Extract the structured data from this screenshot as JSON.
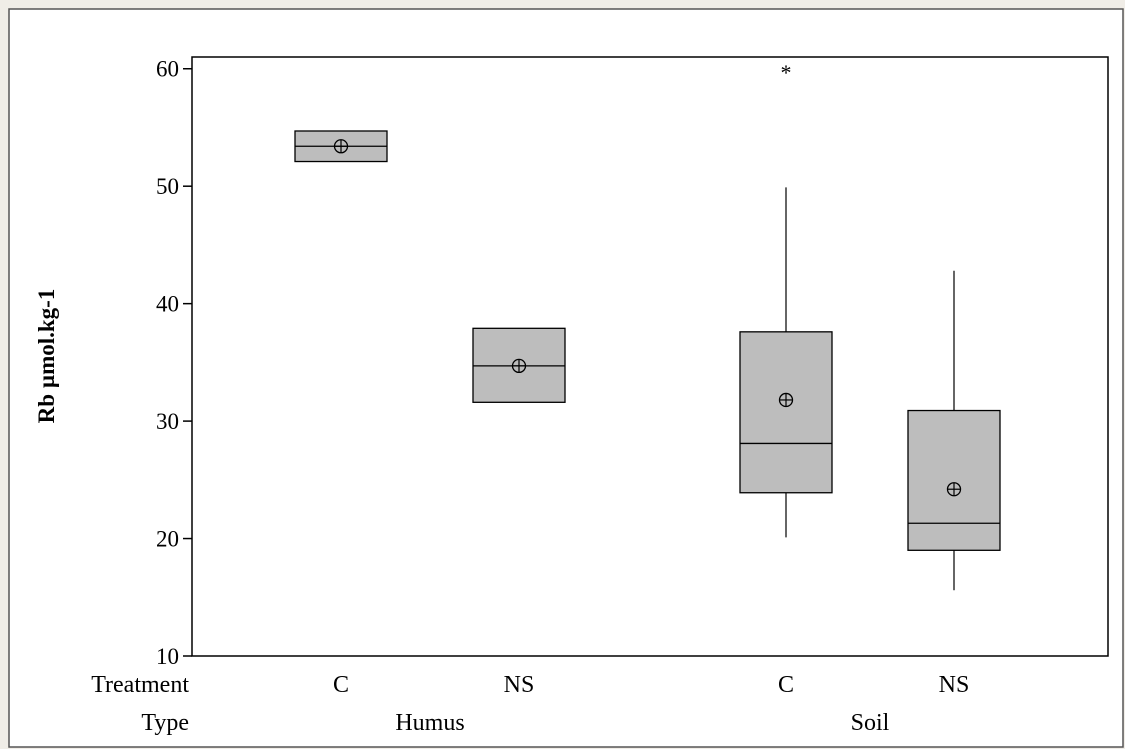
{
  "colors": {
    "background": "#f0ede7",
    "panel": "#ffffff",
    "box_fill": "#bdbdbd",
    "stroke": "#000000"
  },
  "chart_data": {
    "type": "boxplot",
    "title": "",
    "xlabel": "",
    "ylabel": "Rb µmol.kg-1",
    "ylim": [
      10,
      61
    ],
    "yticks": [
      10,
      20,
      30,
      40,
      50,
      60
    ],
    "grid": false,
    "row_labels": {
      "treatment": "Treatment",
      "type": "Type"
    },
    "type_groups": [
      {
        "label": "Humus",
        "span": [
          0,
          1
        ]
      },
      {
        "label": "Soil",
        "span": [
          2,
          3
        ]
      }
    ],
    "boxes": [
      {
        "treatment": "C",
        "type": "Humus",
        "whisker_low": 52.1,
        "q1": 52.1,
        "median": 53.4,
        "q3": 54.7,
        "whisker_high": 54.7,
        "mean": 53.4,
        "outliers": []
      },
      {
        "treatment": "NS",
        "type": "Humus",
        "whisker_low": 31.6,
        "q1": 31.6,
        "median": 34.7,
        "q3": 37.9,
        "whisker_high": 37.9,
        "mean": 34.7,
        "outliers": []
      },
      {
        "treatment": "C",
        "type": "Soil",
        "whisker_low": 20.1,
        "q1": 23.9,
        "median": 28.1,
        "q3": 37.6,
        "whisker_high": 49.9,
        "mean": 31.8,
        "outliers": [
          59.9
        ]
      },
      {
        "treatment": "NS",
        "type": "Soil",
        "whisker_low": 15.6,
        "q1": 19.0,
        "median": 21.3,
        "q3": 30.9,
        "whisker_high": 42.8,
        "mean": 24.2,
        "outliers": []
      }
    ]
  }
}
